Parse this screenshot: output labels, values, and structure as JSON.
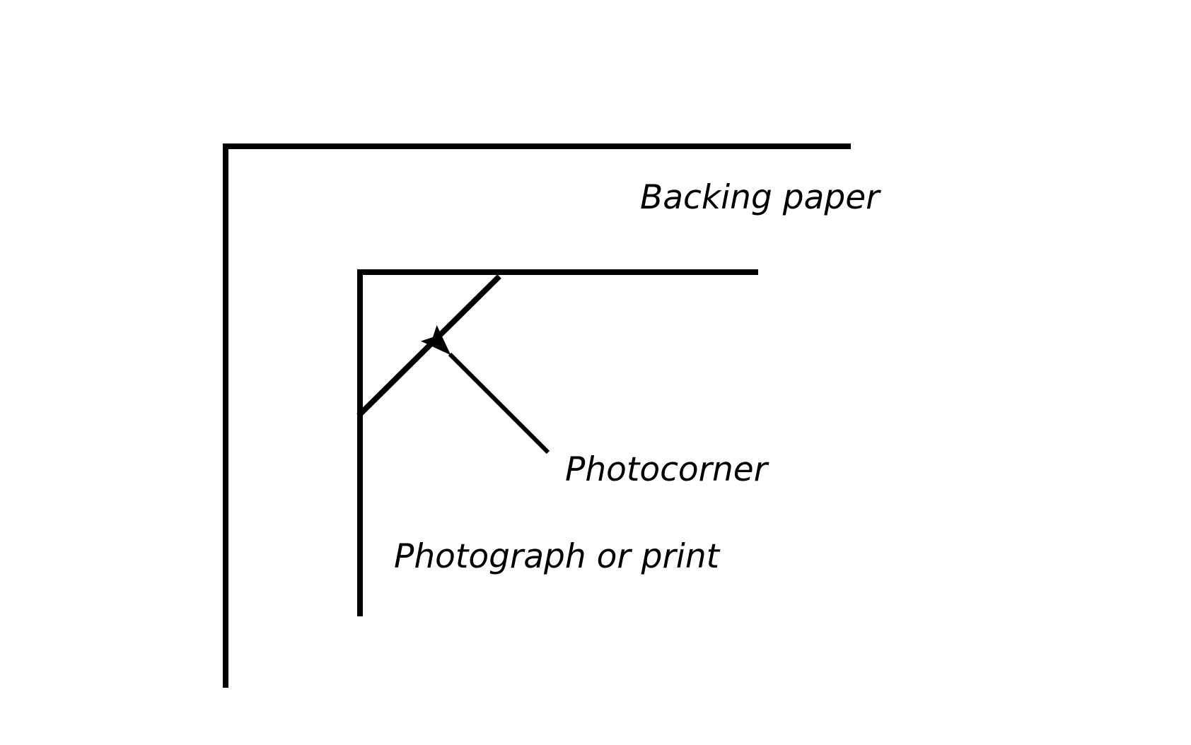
{
  "labels": {
    "backing_paper": "Backing paper",
    "photocorner": "Photocorner",
    "photograph": "Photograph or print"
  },
  "colors": {
    "stroke": "#000000",
    "background": "#ffffff"
  }
}
